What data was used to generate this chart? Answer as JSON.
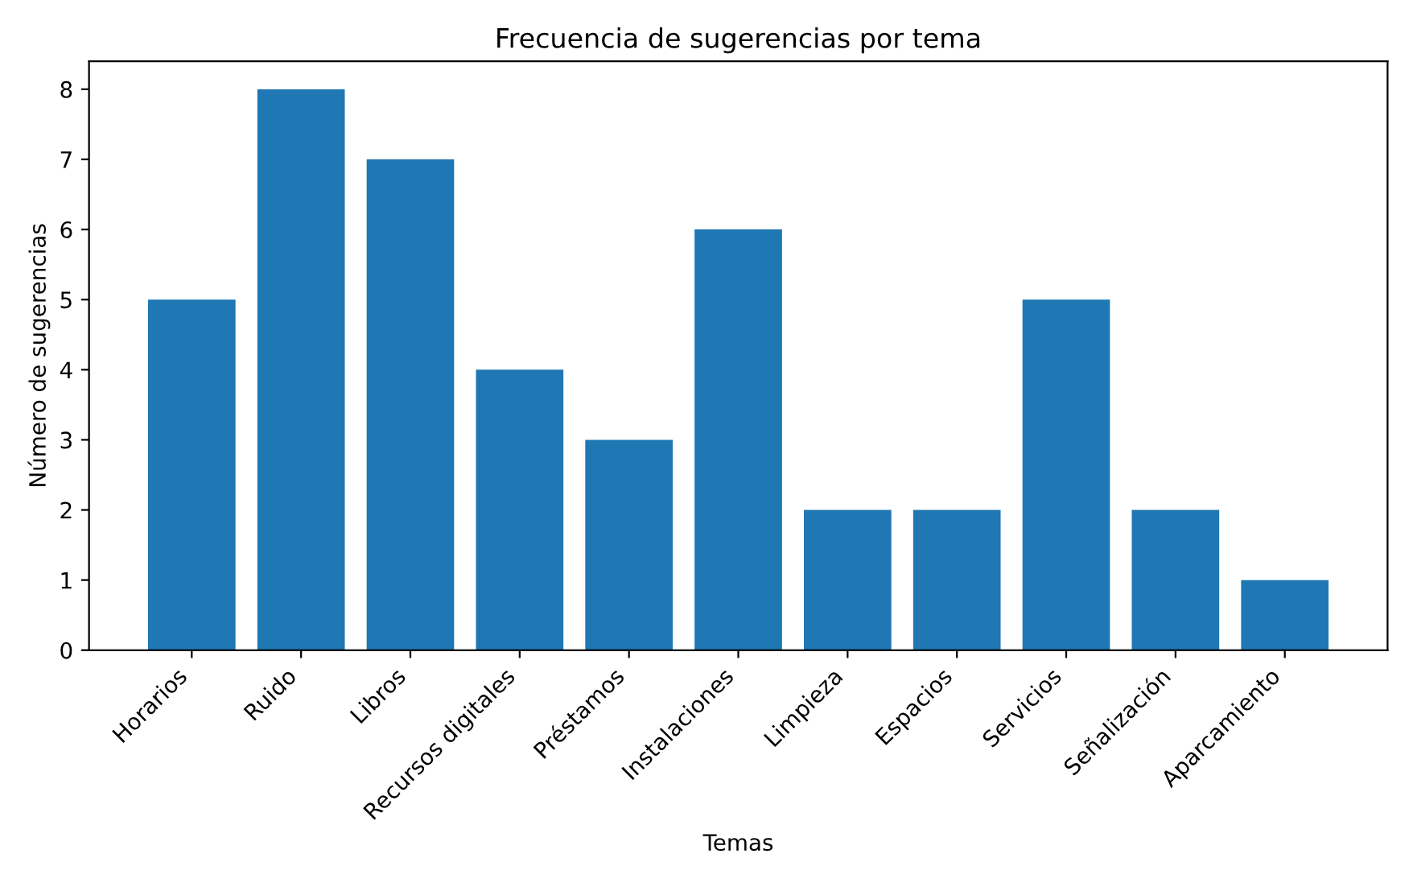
{
  "chart_data": {
    "type": "bar",
    "title": "Frecuencia de sugerencias por tema",
    "xlabel": "Temas",
    "ylabel": "Número de sugerencias",
    "categories": [
      "Horarios",
      "Ruido",
      "Libros",
      "Recursos digitales",
      "Préstamos",
      "Instalaciones",
      "Limpieza",
      "Espacios",
      "Servicios",
      "Señalización",
      "Aparcamiento"
    ],
    "values": [
      5,
      8,
      7,
      4,
      3,
      6,
      2,
      2,
      5,
      2,
      1
    ],
    "color": "#1f77b4",
    "ylim": [
      0,
      8.4
    ],
    "yticks": [
      0,
      1,
      2,
      3,
      4,
      5,
      6,
      7,
      8
    ],
    "grid": false,
    "legend": false
  }
}
